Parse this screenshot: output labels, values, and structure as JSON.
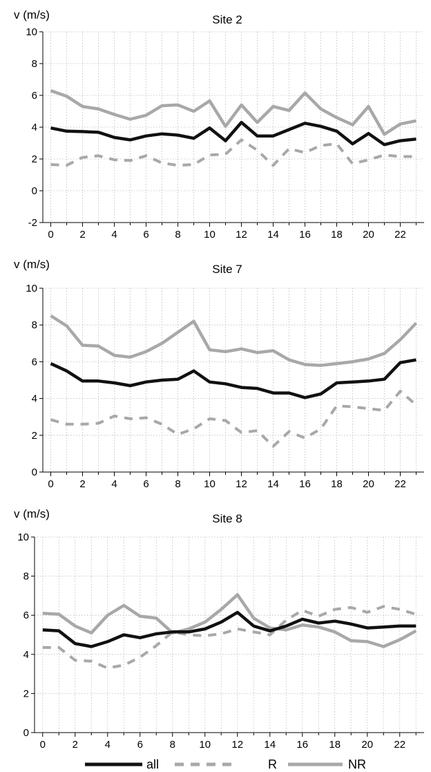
{
  "chart_data": [
    {
      "type": "line",
      "title": "Site 2",
      "ylabel": "v (m/s)",
      "ylim": [
        -2,
        10
      ],
      "yticks": [
        -2,
        0,
        2,
        4,
        6,
        8,
        10
      ],
      "xlim": [
        -0.5,
        23.5
      ],
      "xticks": [
        0,
        2,
        4,
        6,
        8,
        10,
        12,
        14,
        16,
        18,
        20,
        22
      ],
      "grid": true,
      "x": [
        0,
        1,
        2,
        3,
        4,
        5,
        6,
        7,
        8,
        9,
        10,
        11,
        12,
        13,
        14,
        15,
        16,
        17,
        18,
        19,
        20,
        21,
        22,
        23
      ],
      "series": [
        {
          "name": "all",
          "color": "#111111",
          "style": "solid",
          "values": [
            3.95,
            3.75,
            3.72,
            3.68,
            3.35,
            3.2,
            3.45,
            3.58,
            3.5,
            3.3,
            3.95,
            3.15,
            4.3,
            3.45,
            3.45,
            3.85,
            4.25,
            4.05,
            3.75,
            2.95,
            3.6,
            2.9,
            3.15,
            3.25
          ]
        },
        {
          "name": "R",
          "color": "#a8a8a8",
          "style": "dashed",
          "values": [
            1.65,
            1.6,
            2.1,
            2.2,
            1.95,
            1.9,
            2.2,
            1.75,
            1.6,
            1.65,
            2.25,
            2.3,
            3.2,
            2.55,
            1.6,
            2.65,
            2.4,
            2.85,
            2.95,
            1.7,
            1.95,
            2.25,
            2.15,
            2.15
          ]
        },
        {
          "name": "NR",
          "color": "#a8a8a8",
          "style": "solid",
          "values": [
            6.3,
            5.95,
            5.3,
            5.15,
            4.8,
            4.5,
            4.75,
            5.35,
            5.4,
            5.0,
            5.65,
            4.05,
            5.4,
            4.3,
            5.3,
            5.05,
            6.15,
            5.15,
            4.6,
            4.15,
            5.3,
            3.55,
            4.2,
            4.4
          ]
        }
      ]
    },
    {
      "type": "line",
      "title": "Site 7",
      "ylabel": "v (m/s)",
      "ylim": [
        0,
        10
      ],
      "yticks": [
        0,
        2,
        4,
        6,
        8,
        10
      ],
      "xlim": [
        -0.5,
        23.5
      ],
      "xticks": [
        0,
        2,
        4,
        6,
        8,
        10,
        12,
        14,
        16,
        18,
        20,
        22
      ],
      "grid": true,
      "x": [
        0,
        1,
        2,
        3,
        4,
        5,
        6,
        7,
        8,
        9,
        10,
        11,
        12,
        13,
        14,
        15,
        16,
        17,
        18,
        19,
        20,
        21,
        22,
        23
      ],
      "series": [
        {
          "name": "all",
          "color": "#111111",
          "style": "solid",
          "values": [
            5.9,
            5.5,
            4.95,
            4.95,
            4.85,
            4.7,
            4.9,
            5.0,
            5.05,
            5.5,
            4.9,
            4.8,
            4.6,
            4.55,
            4.3,
            4.3,
            4.05,
            4.25,
            4.85,
            4.9,
            4.95,
            5.05,
            5.95,
            6.1
          ]
        },
        {
          "name": "R",
          "color": "#a8a8a8",
          "style": "dashed",
          "values": [
            2.85,
            2.6,
            2.6,
            2.65,
            3.05,
            2.9,
            2.95,
            2.6,
            2.05,
            2.35,
            2.9,
            2.8,
            2.15,
            2.25,
            1.4,
            2.2,
            1.85,
            2.35,
            3.6,
            3.55,
            3.45,
            3.35,
            4.4,
            3.65
          ]
        },
        {
          "name": "NR",
          "color": "#a8a8a8",
          "style": "solid",
          "values": [
            8.5,
            7.95,
            6.9,
            6.85,
            6.35,
            6.25,
            6.55,
            7.0,
            7.6,
            8.2,
            6.65,
            6.55,
            6.7,
            6.5,
            6.6,
            6.1,
            5.85,
            5.8,
            5.9,
            6.0,
            6.15,
            6.45,
            7.2,
            8.1
          ]
        }
      ]
    },
    {
      "type": "line",
      "title": "Site 8",
      "ylabel": "v (m/s)",
      "ylim": [
        0,
        10
      ],
      "yticks": [
        0,
        2,
        4,
        6,
        8,
        10
      ],
      "xlim": [
        -0.5,
        23.5
      ],
      "xticks": [
        0,
        2,
        4,
        6,
        8,
        10,
        12,
        14,
        16,
        18,
        20,
        22
      ],
      "grid": true,
      "x": [
        0,
        1,
        2,
        3,
        4,
        5,
        6,
        7,
        8,
        9,
        10,
        11,
        12,
        13,
        14,
        15,
        16,
        17,
        18,
        19,
        20,
        21,
        22,
        23
      ],
      "series": [
        {
          "name": "all",
          "color": "#111111",
          "style": "solid",
          "values": [
            5.25,
            5.2,
            4.55,
            4.4,
            4.65,
            5.0,
            4.85,
            5.05,
            5.15,
            5.15,
            5.3,
            5.65,
            6.15,
            5.45,
            5.2,
            5.45,
            5.8,
            5.6,
            5.7,
            5.55,
            5.35,
            5.4,
            5.45,
            5.45
          ]
        },
        {
          "name": "R",
          "color": "#a8a8a8",
          "style": "dashed",
          "values": [
            4.35,
            4.35,
            3.7,
            3.65,
            3.3,
            3.45,
            3.85,
            4.45,
            5.15,
            5.0,
            4.95,
            5.05,
            5.3,
            5.15,
            5.0,
            5.75,
            6.25,
            5.95,
            6.3,
            6.4,
            6.15,
            6.45,
            6.3,
            6.05
          ]
        },
        {
          "name": "NR",
          "color": "#a8a8a8",
          "style": "solid",
          "values": [
            6.1,
            6.05,
            5.45,
            5.1,
            6.0,
            6.5,
            5.95,
            5.85,
            5.1,
            5.3,
            5.65,
            6.3,
            7.05,
            5.85,
            5.35,
            5.25,
            5.5,
            5.4,
            5.15,
            4.7,
            4.65,
            4.4,
            4.75,
            5.2
          ]
        }
      ]
    }
  ],
  "legend": {
    "items": [
      {
        "label": "all",
        "color": "#111111",
        "style": "solid"
      },
      {
        "label": "R",
        "color": "#a8a8a8",
        "style": "dashed"
      },
      {
        "label": "NR",
        "color": "#a8a8a8",
        "style": "solid"
      }
    ]
  }
}
